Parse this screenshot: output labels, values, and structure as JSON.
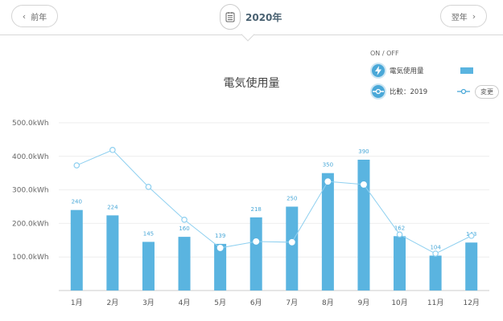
{
  "header": {
    "prev_label": "前年",
    "next_label": "翌年",
    "year_label": "2020年"
  },
  "legend": {
    "onoff": "ON / OFF",
    "usage_label": "電気使用量",
    "compare_label": "比較：2019",
    "change_button": "変更"
  },
  "colors": {
    "bar": "#5ab4e0",
    "line": "#8fd0f0",
    "accent": "#4aa8d8"
  },
  "chart_data": {
    "type": "bar",
    "title": "電気使用量",
    "xlabel": "",
    "ylabel": "kWh",
    "ylim": [
      0,
      500
    ],
    "yticks": [
      "100.0kWh",
      "200.0kWh",
      "300.0kWh",
      "400.0kWh",
      "500.0kWh"
    ],
    "grid": true,
    "legend_position": "top-right",
    "categories": [
      "1月",
      "2月",
      "3月",
      "4月",
      "5月",
      "6月",
      "7月",
      "8月",
      "9月",
      "10月",
      "11月",
      "12月"
    ],
    "series": [
      {
        "name": "電気使用量",
        "type": "bar",
        "values": [
          240,
          224,
          145,
          160,
          139,
          218,
          250,
          350,
          390,
          162,
          104,
          143
        ],
        "labels": [
          "240",
          "224",
          "145",
          "160",
          "139",
          "218",
          "250",
          "350",
          "390",
          "162",
          "104",
          "143"
        ]
      },
      {
        "name": "比較：2019",
        "type": "line",
        "values": [
          373,
          419,
          309,
          211,
          127,
          146,
          144,
          325,
          316,
          167,
          110,
          163
        ]
      }
    ]
  }
}
